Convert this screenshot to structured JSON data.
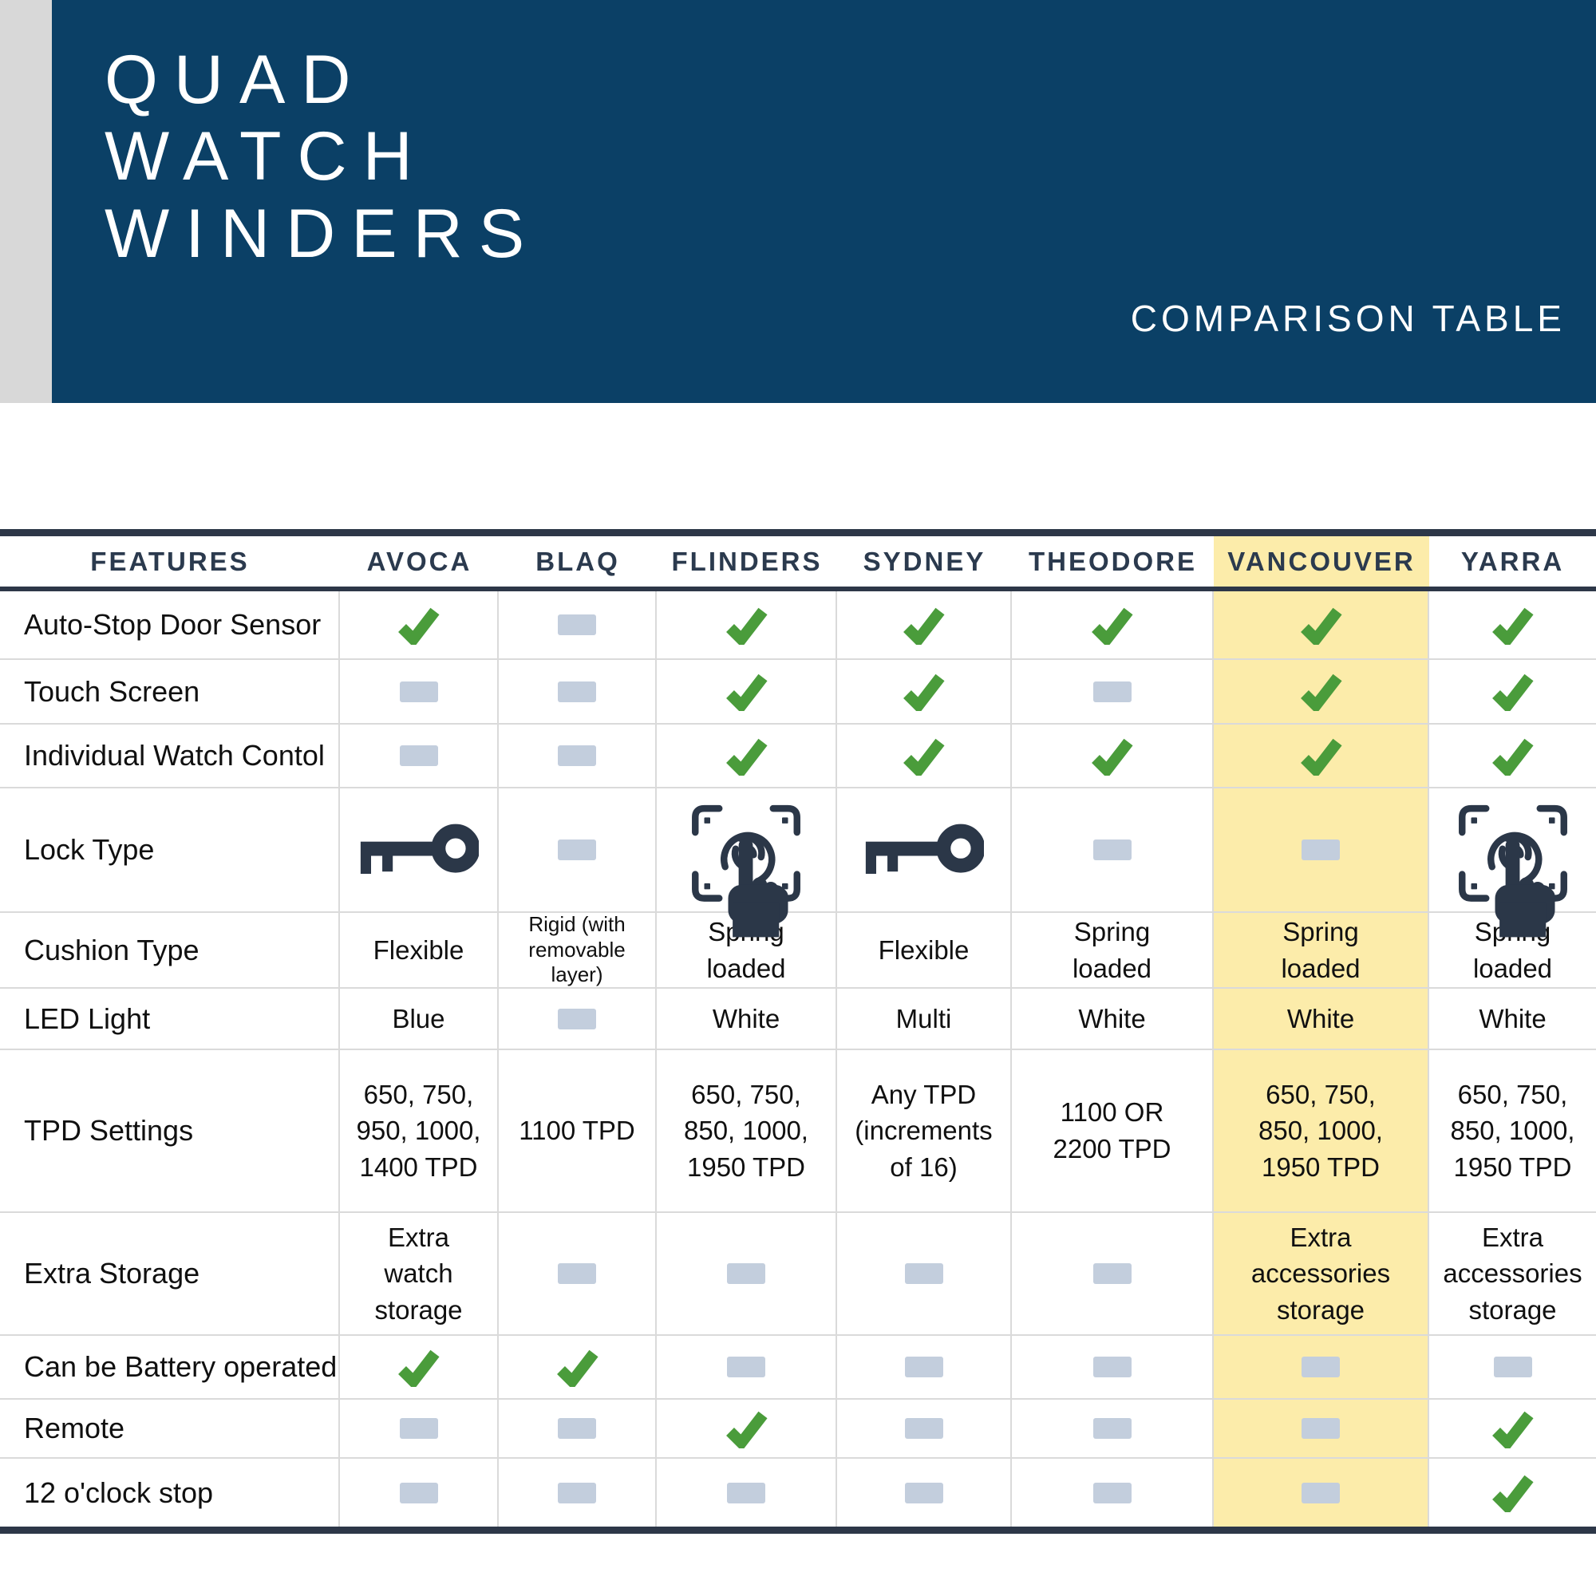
{
  "banner": {
    "title_lines": [
      "QUAD",
      "WATCH",
      "WINDERS"
    ],
    "subtitle": "COMPARISON TABLE"
  },
  "table": {
    "features_header": "FEATURES",
    "columns": [
      "AVOCA",
      "BLAQ",
      "FLINDERS",
      "SYDNEY",
      "THEODORE",
      "VANCOUVER",
      "YARRA"
    ],
    "highlighted_column": "VANCOUVER",
    "rows": [
      {
        "feature": "Auto-Stop Door Sensor",
        "cells": [
          "check",
          "dash",
          "check",
          "check",
          "check",
          "check",
          "check"
        ]
      },
      {
        "feature": "Touch Screen",
        "cells": [
          "dash",
          "dash",
          "check",
          "check",
          "dash",
          "check",
          "check"
        ]
      },
      {
        "feature": "Individual Watch Contol",
        "cells": [
          "dash",
          "dash",
          "check",
          "check",
          "check",
          "check",
          "check"
        ]
      },
      {
        "feature": "Lock Type",
        "cells": [
          "key",
          "dash",
          "fingerprint",
          "key",
          "dash",
          "dash",
          "fingerprint"
        ]
      },
      {
        "feature": "Cushion Type",
        "cells": [
          {
            "text": "Flexible"
          },
          {
            "text": "Rigid (with\nremovable\nlayer)",
            "small": true
          },
          {
            "text": "Spring\nloaded"
          },
          {
            "text": "Flexible"
          },
          {
            "text": "Spring\nloaded"
          },
          {
            "text": "Spring\nloaded"
          },
          {
            "text": "Spring\nloaded"
          }
        ]
      },
      {
        "feature": "LED Light",
        "cells": [
          {
            "text": "Blue"
          },
          "dash",
          {
            "text": "White"
          },
          {
            "text": "Multi"
          },
          {
            "text": "White"
          },
          {
            "text": "White"
          },
          {
            "text": "White"
          }
        ]
      },
      {
        "feature": "TPD Settings",
        "cells": [
          {
            "text": "650, 750,\n950, 1000,\n1400 TPD"
          },
          {
            "text": "1100 TPD"
          },
          {
            "text": "650, 750,\n850, 1000,\n1950 TPD"
          },
          {
            "text": "Any TPD\n(increments\nof 16)"
          },
          {
            "text": "1100 OR\n2200 TPD"
          },
          {
            "text": "650, 750,\n850, 1000,\n1950 TPD"
          },
          {
            "text": "650, 750,\n850, 1000,\n1950 TPD"
          }
        ]
      },
      {
        "feature": "Extra Storage",
        "cells": [
          {
            "text": "Extra\nwatch\nstorage"
          },
          "dash",
          "dash",
          "dash",
          "dash",
          {
            "text": "Extra\naccessories\nstorage"
          },
          {
            "text": "Extra\naccessories\nstorage"
          }
        ]
      },
      {
        "feature": "Can be Battery operated",
        "cells": [
          "check",
          "check",
          "dash",
          "dash",
          "dash",
          "dash",
          "dash"
        ]
      },
      {
        "feature": "Remote",
        "cells": [
          "dash",
          "dash",
          "check",
          "dash",
          "dash",
          "dash",
          "check"
        ]
      },
      {
        "feature": "12 o'clock stop",
        "cells": [
          "dash",
          "dash",
          "dash",
          "dash",
          "dash",
          "dash",
          "check"
        ]
      }
    ]
  },
  "colors": {
    "banner_navy": "#0b4066",
    "left_strip_gray": "#d8d8d8",
    "table_bar": "#2d3748",
    "header_text": "#2b3a4e",
    "check_green": "#4a9c3b",
    "dash_gray_blue": "#c3cedd",
    "highlight_yellow": "#fcecaa",
    "grid_line": "#dadada",
    "icon_dark": "#2b3748"
  },
  "chart_data": {
    "type": "table",
    "title": "Quad Watch Winders — Comparison Table",
    "columns": [
      "FEATURES",
      "AVOCA",
      "BLAQ",
      "FLINDERS",
      "SYDNEY",
      "THEODORE",
      "VANCOUVER",
      "YARRA"
    ],
    "highlighted_column": "VANCOUVER",
    "rows": [
      [
        "Auto-Stop Door Sensor",
        "yes",
        "no",
        "yes",
        "yes",
        "yes",
        "yes",
        "yes"
      ],
      [
        "Touch Screen",
        "no",
        "no",
        "yes",
        "yes",
        "no",
        "yes",
        "yes"
      ],
      [
        "Individual Watch Contol",
        "key: no",
        "no",
        "yes",
        "yes",
        "yes",
        "yes",
        "yes"
      ],
      [
        "Lock Type",
        "key lock",
        "no",
        "fingerprint lock",
        "key lock",
        "no",
        "no",
        "fingerprint lock"
      ],
      [
        "Cushion Type",
        "Flexible",
        "Rigid (with removable layer)",
        "Spring loaded",
        "Flexible",
        "Spring loaded",
        "Spring loaded",
        "Spring loaded"
      ],
      [
        "LED Light",
        "Blue",
        "no",
        "White",
        "Multi",
        "White",
        "White",
        "White"
      ],
      [
        "TPD Settings",
        "650, 750, 950, 1000, 1400 TPD",
        "1100 TPD",
        "650, 750, 850, 1000, 1950 TPD",
        "Any TPD (increments of 16)",
        "1100 OR 2200 TPD",
        "650, 750, 850, 1000, 1950 TPD",
        "650, 750, 850, 1000, 1950 TPD"
      ],
      [
        "Extra Storage",
        "Extra watch storage",
        "no",
        "no",
        "no",
        "no",
        "Extra accessories storage",
        "Extra accessories storage"
      ],
      [
        "Can be Battery operated",
        "yes",
        "yes",
        "no",
        "no",
        "no",
        "no",
        "no"
      ],
      [
        "Remote",
        "no",
        "no",
        "yes",
        "no",
        "no",
        "no",
        "yes"
      ],
      [
        "12 o'clock stop",
        "no",
        "no",
        "no",
        "no",
        "no",
        "no",
        "yes"
      ]
    ]
  }
}
